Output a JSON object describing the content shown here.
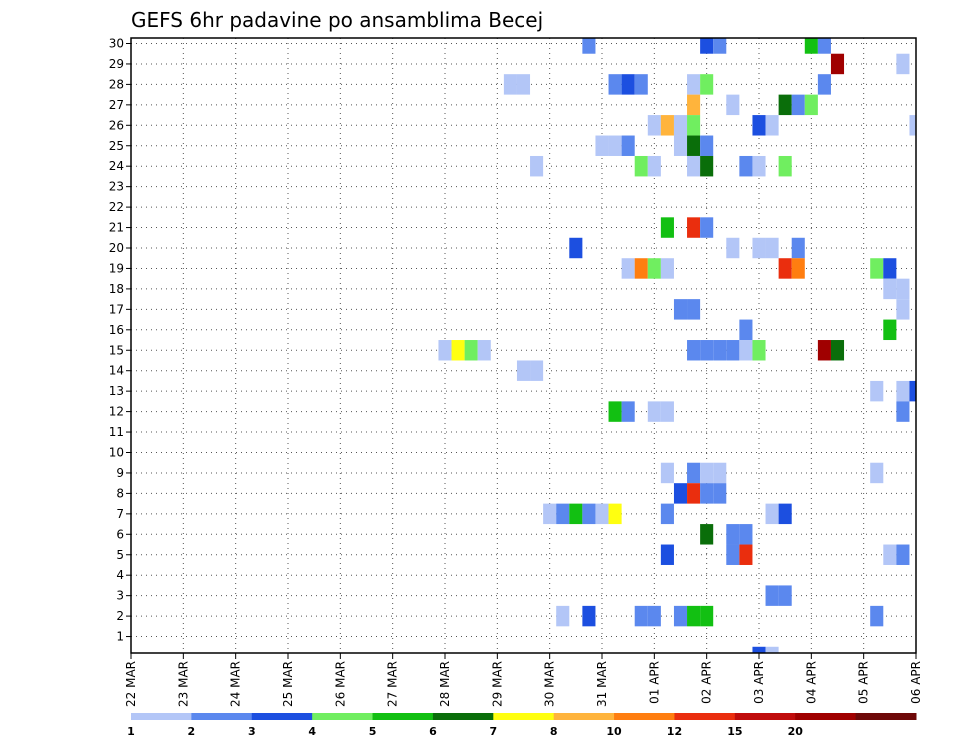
{
  "chart_data": {
    "type": "heatmap",
    "title": "GEFS 6hr padavine po ansamblima Becej",
    "xlabel": "",
    "ylabel": "",
    "x_tick_labels": [
      "22 MAR",
      "23 MAR",
      "24 MAR",
      "25 MAR",
      "26 MAR",
      "27 MAR",
      "28 MAR",
      "29 MAR",
      "30 MAR",
      "31 MAR",
      "01 APR",
      "02 APR",
      "03 APR",
      "04 APR",
      "05 APR",
      "06 APR"
    ],
    "y_tick_labels": [
      "1",
      "2",
      "3",
      "4",
      "5",
      "6",
      "7",
      "8",
      "9",
      "10",
      "11",
      "12",
      "13",
      "14",
      "15",
      "16",
      "17",
      "18",
      "19",
      "20",
      "21",
      "22",
      "23",
      "24",
      "25",
      "26",
      "27",
      "28",
      "29",
      "30"
    ],
    "steps_per_day": 4,
    "total_steps": 61,
    "grid": "dotted",
    "colorbar": {
      "labels": [
        "1",
        "2",
        "3",
        "4",
        "5",
        "6",
        "7",
        "8",
        "10",
        "12",
        "15",
        "20",
        ""
      ],
      "colors": [
        "#b3c6f7",
        "#5b88ee",
        "#1c4fe0",
        "#70ee60",
        "#12c012",
        "#0a6e0a",
        "#ffff10",
        "#ffb43c",
        "#ff7e10",
        "#ea2e0e",
        "#c00c0c",
        "#a00000",
        "#6e0808"
      ]
    },
    "cells": [
      [
        30,
        35,
        "#5b88ee"
      ],
      [
        30,
        44,
        "#1c4fe0"
      ],
      [
        30,
        45,
        "#5b88ee"
      ],
      [
        30,
        52,
        "#12c012"
      ],
      [
        30,
        53,
        "#5b88ee"
      ],
      [
        29,
        54,
        "#a00000"
      ],
      [
        29,
        59,
        "#b3c6f7"
      ],
      [
        28,
        29,
        "#b3c6f7"
      ],
      [
        28,
        30,
        "#b3c6f7"
      ],
      [
        28,
        37,
        "#5b88ee"
      ],
      [
        28,
        38,
        "#1c4fe0"
      ],
      [
        28,
        39,
        "#5b88ee"
      ],
      [
        28,
        43,
        "#b3c6f7"
      ],
      [
        28,
        44,
        "#70ee60"
      ],
      [
        28,
        53,
        "#5b88ee"
      ],
      [
        27,
        43,
        "#ffb43c"
      ],
      [
        27,
        46,
        "#b3c6f7"
      ],
      [
        27,
        50,
        "#0a6e0a"
      ],
      [
        27,
        51,
        "#5b88ee"
      ],
      [
        27,
        52,
        "#70ee60"
      ],
      [
        26,
        40,
        "#b3c6f7"
      ],
      [
        26,
        41,
        "#ffb43c"
      ],
      [
        26,
        42,
        "#b3c6f7"
      ],
      [
        26,
        43,
        "#70ee60"
      ],
      [
        26,
        48,
        "#1c4fe0"
      ],
      [
        26,
        49,
        "#b3c6f7"
      ],
      [
        26,
        60,
        "#b3c6f7"
      ],
      [
        25,
        36,
        "#b3c6f7"
      ],
      [
        25,
        37,
        "#b3c6f7"
      ],
      [
        25,
        38,
        "#5b88ee"
      ],
      [
        25,
        42,
        "#b3c6f7"
      ],
      [
        25,
        43,
        "#0a6e0a"
      ],
      [
        25,
        44,
        "#5b88ee"
      ],
      [
        24,
        31,
        "#b3c6f7"
      ],
      [
        24,
        39,
        "#70ee60"
      ],
      [
        24,
        40,
        "#b3c6f7"
      ],
      [
        24,
        43,
        "#b3c6f7"
      ],
      [
        24,
        44,
        "#0a6e0a"
      ],
      [
        24,
        47,
        "#5b88ee"
      ],
      [
        24,
        48,
        "#b3c6f7"
      ],
      [
        24,
        50,
        "#70ee60"
      ],
      [
        21,
        41,
        "#12c012"
      ],
      [
        21,
        43,
        "#ea2e0e"
      ],
      [
        21,
        44,
        "#5b88ee"
      ],
      [
        20,
        34,
        "#1c4fe0"
      ],
      [
        20,
        46,
        "#b3c6f7"
      ],
      [
        20,
        48,
        "#b3c6f7"
      ],
      [
        20,
        49,
        "#b3c6f7"
      ],
      [
        20,
        51,
        "#5b88ee"
      ],
      [
        19,
        38,
        "#b3c6f7"
      ],
      [
        19,
        39,
        "#ff7e10"
      ],
      [
        19,
        40,
        "#70ee60"
      ],
      [
        19,
        41,
        "#b3c6f7"
      ],
      [
        19,
        50,
        "#ea2e0e"
      ],
      [
        19,
        51,
        "#ff7e10"
      ],
      [
        19,
        57,
        "#70ee60"
      ],
      [
        19,
        58,
        "#1c4fe0"
      ],
      [
        18,
        58,
        "#b3c6f7"
      ],
      [
        18,
        59,
        "#b3c6f7"
      ],
      [
        17,
        42,
        "#5b88ee"
      ],
      [
        17,
        43,
        "#5b88ee"
      ],
      [
        17,
        59,
        "#b3c6f7"
      ],
      [
        16,
        47,
        "#5b88ee"
      ],
      [
        16,
        58,
        "#12c012"
      ],
      [
        15,
        24,
        "#b3c6f7"
      ],
      [
        15,
        25,
        "#ffff10"
      ],
      [
        15,
        26,
        "#70ee60"
      ],
      [
        15,
        27,
        "#b3c6f7"
      ],
      [
        15,
        43,
        "#5b88ee"
      ],
      [
        15,
        44,
        "#5b88ee"
      ],
      [
        15,
        45,
        "#5b88ee"
      ],
      [
        15,
        46,
        "#5b88ee"
      ],
      [
        15,
        47,
        "#b3c6f7"
      ],
      [
        15,
        48,
        "#70ee60"
      ],
      [
        15,
        53,
        "#a00000"
      ],
      [
        15,
        54,
        "#0a6e0a"
      ],
      [
        14,
        30,
        "#b3c6f7"
      ],
      [
        14,
        31,
        "#b3c6f7"
      ],
      [
        13,
        57,
        "#b3c6f7"
      ],
      [
        13,
        59,
        "#b3c6f7"
      ],
      [
        13,
        60,
        "#1c4fe0"
      ],
      [
        12,
        37,
        "#12c012"
      ],
      [
        12,
        38,
        "#5b88ee"
      ],
      [
        12,
        40,
        "#b3c6f7"
      ],
      [
        12,
        41,
        "#b3c6f7"
      ],
      [
        12,
        59,
        "#5b88ee"
      ],
      [
        9,
        41,
        "#b3c6f7"
      ],
      [
        9,
        43,
        "#5b88ee"
      ],
      [
        9,
        44,
        "#b3c6f7"
      ],
      [
        9,
        45,
        "#b3c6f7"
      ],
      [
        9,
        57,
        "#b3c6f7"
      ],
      [
        8,
        42,
        "#1c4fe0"
      ],
      [
        8,
        43,
        "#ea2e0e"
      ],
      [
        8,
        44,
        "#5b88ee"
      ],
      [
        8,
        45,
        "#5b88ee"
      ],
      [
        7,
        32,
        "#b3c6f7"
      ],
      [
        7,
        33,
        "#5b88ee"
      ],
      [
        7,
        34,
        "#12c012"
      ],
      [
        7,
        35,
        "#5b88ee"
      ],
      [
        7,
        36,
        "#b3c6f7"
      ],
      [
        7,
        37,
        "#ffff10"
      ],
      [
        7,
        41,
        "#5b88ee"
      ],
      [
        7,
        49,
        "#b3c6f7"
      ],
      [
        7,
        50,
        "#1c4fe0"
      ],
      [
        6,
        44,
        "#0a6e0a"
      ],
      [
        6,
        46,
        "#5b88ee"
      ],
      [
        6,
        47,
        "#5b88ee"
      ],
      [
        5,
        41,
        "#1c4fe0"
      ],
      [
        5,
        46,
        "#5b88ee"
      ],
      [
        5,
        47,
        "#ea2e0e"
      ],
      [
        5,
        58,
        "#b3c6f7"
      ],
      [
        5,
        59,
        "#5b88ee"
      ],
      [
        3,
        49,
        "#5b88ee"
      ],
      [
        3,
        50,
        "#5b88ee"
      ],
      [
        2,
        33,
        "#b3c6f7"
      ],
      [
        2,
        35,
        "#1c4fe0"
      ],
      [
        2,
        39,
        "#5b88ee"
      ],
      [
        2,
        40,
        "#5b88ee"
      ],
      [
        2,
        42,
        "#5b88ee"
      ],
      [
        2,
        43,
        "#12c012"
      ],
      [
        2,
        44,
        "#12c012"
      ],
      [
        2,
        57,
        "#5b88ee"
      ],
      [
        0,
        48,
        "#1c4fe0"
      ],
      [
        0,
        49,
        "#b3c6f7"
      ]
    ]
  }
}
